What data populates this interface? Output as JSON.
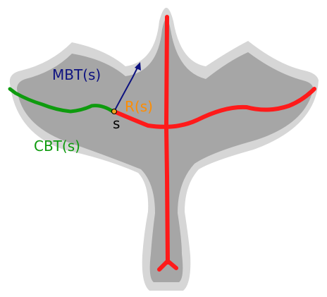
{
  "labels": {
    "mbt": "MBT(s)",
    "r": "R(s)",
    "s": "s",
    "cbt": "CBT(s)"
  },
  "colors": {
    "outer_shape": "#d6d6d6",
    "inner_shape": "#a6a6a6",
    "red_path": "#ff1a1a",
    "green_path": "#0e9b0e",
    "blue_path": "#0d1280",
    "orange_label": "#ff8c00",
    "point": "#f0a020"
  }
}
